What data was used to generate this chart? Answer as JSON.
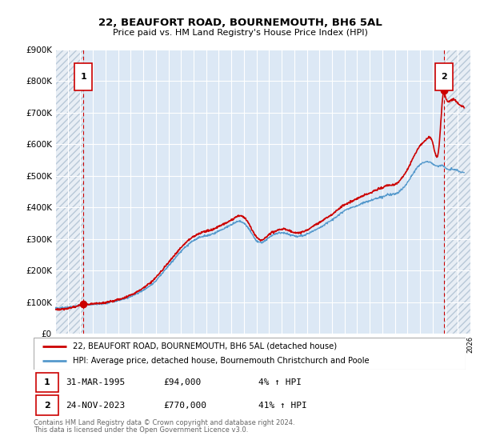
{
  "title": "22, BEAUFORT ROAD, BOURNEMOUTH, BH6 5AL",
  "subtitle": "Price paid vs. HM Land Registry's House Price Index (HPI)",
  "sale1_date": 1995.25,
  "sale1_price": 94000,
  "sale2_date": 2023.9,
  "sale2_price": 770000,
  "legend_line1": "22, BEAUFORT ROAD, BOURNEMOUTH, BH6 5AL (detached house)",
  "legend_line2": "HPI: Average price, detached house, Bournemouth Christchurch and Poole",
  "table_row1": [
    "1",
    "31-MAR-1995",
    "£94,000",
    "4% ↑ HPI"
  ],
  "table_row2": [
    "2",
    "24-NOV-2023",
    "£770,000",
    "41% ↑ HPI"
  ],
  "footnote1": "Contains HM Land Registry data © Crown copyright and database right 2024.",
  "footnote2": "This data is licensed under the Open Government Licence v3.0.",
  "ylim": [
    0,
    900000
  ],
  "xlim": [
    1993,
    2026
  ],
  "plot_bg": "#dce8f5",
  "line_color_property": "#cc0000",
  "line_color_hpi": "#5599cc",
  "marker_color": "#cc0000",
  "dashed_line_color": "#cc0000",
  "hatch_edgecolor": "#b8c8d8"
}
